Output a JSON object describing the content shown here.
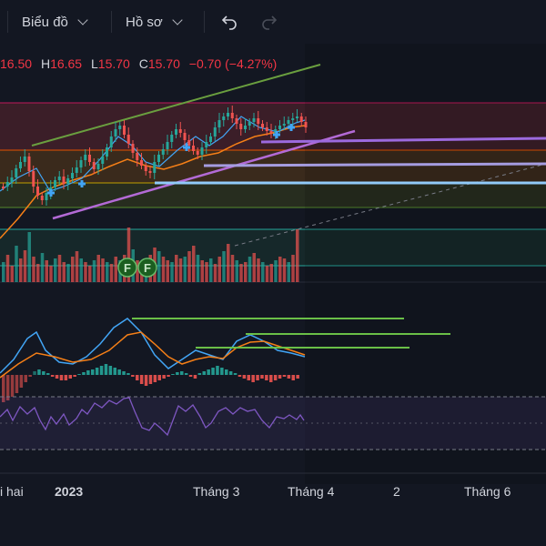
{
  "toolbar": {
    "chart_label": "Biểu đồ",
    "profile_label": "Hồ sơ",
    "undo_icon": "undo-icon",
    "redo_icon": "redo-icon"
  },
  "ohlc": {
    "open_value": "16.50",
    "high_key": "H",
    "high_value": "16.65",
    "low_key": "L",
    "low_value": "15.70",
    "close_key": "C",
    "close_value": "15.70",
    "change": "−0.70 (−4.27%)"
  },
  "event_markers": [
    "F",
    "F"
  ],
  "time_axis": {
    "labels": [
      "i hai",
      "2023",
      "Tháng 3",
      "Tháng 4",
      "2",
      "Tháng 6"
    ]
  },
  "colors": {
    "background": "#131722",
    "up": "#26a69a",
    "down": "#ef5350",
    "price_negative": "#f23645",
    "trend_green": "#4caf50",
    "support_purple": "#9c6ade",
    "support_blue": "#90caf9",
    "rsi_line": "#7e57c2"
  }
}
